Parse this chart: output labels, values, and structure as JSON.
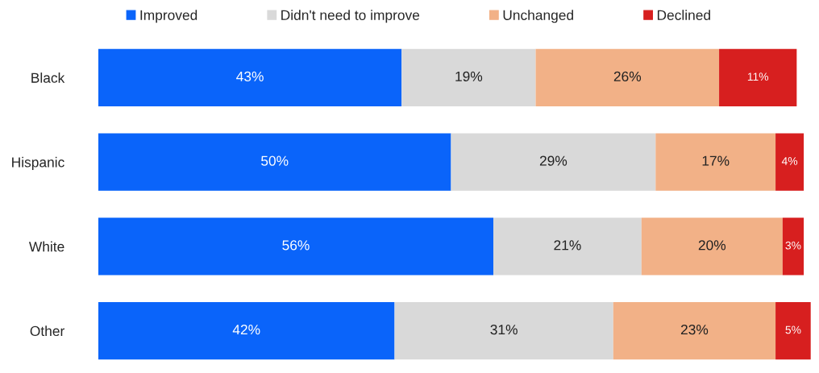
{
  "chart_data": {
    "type": "bar",
    "orientation": "horizontal",
    "stacked": true,
    "categories": [
      "Black",
      "Hispanic",
      "White",
      "Other"
    ],
    "series": [
      {
        "name": "Improved",
        "color": "#0a64fa",
        "values": [
          43,
          50,
          56,
          42
        ],
        "value_labels": [
          "43%",
          "50%",
          "56%",
          "42%"
        ]
      },
      {
        "name": "Didn't need to improve",
        "color": "#d9d9d9",
        "values": [
          19,
          29,
          21,
          31
        ],
        "value_labels": [
          "19%",
          "29%",
          "21%",
          "31%"
        ]
      },
      {
        "name": "Unchanged",
        "color": "#f2b187",
        "values": [
          26,
          17,
          20,
          23
        ],
        "value_labels": [
          "26%",
          "17%",
          "20%",
          "23%"
        ]
      },
      {
        "name": "Declined",
        "color": "#d71f1f",
        "values": [
          11,
          4,
          3,
          5
        ],
        "value_labels": [
          "11%",
          "4%",
          "3%",
          "5%"
        ]
      }
    ],
    "tick_labels": "y",
    "legend": "top",
    "grid": false
  }
}
